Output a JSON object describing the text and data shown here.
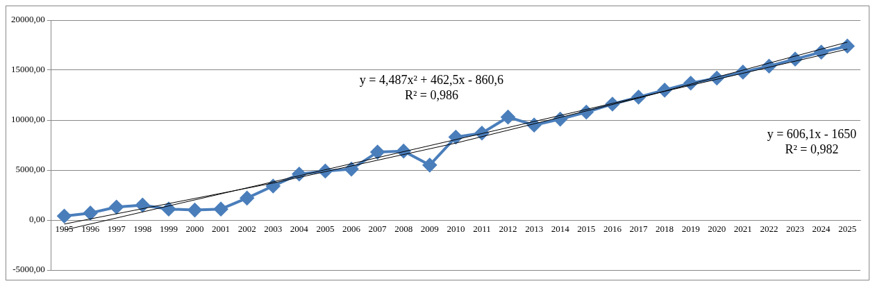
{
  "chart_data": {
    "type": "line",
    "categories": [
      "1995",
      "1996",
      "1997",
      "1998",
      "1999",
      "2000",
      "2001",
      "2002",
      "2003",
      "2004",
      "2005",
      "2006",
      "2007",
      "2008",
      "2009",
      "2010",
      "2011",
      "2012",
      "2013",
      "2014",
      "2015",
      "2016",
      "2017",
      "2018",
      "2019",
      "2020",
      "2021",
      "2022",
      "2023",
      "2024",
      "2025"
    ],
    "series": [
      {
        "color": "#4a7ebb",
        "values": [
          400,
          700,
          1300,
          1500,
          1100,
          1000,
          1100,
          2200,
          3400,
          4600,
          4900,
          5100,
          6800,
          6900,
          5500,
          8300,
          8700,
          10300,
          9500,
          10100,
          10800,
          11600,
          12300,
          13000,
          13700,
          14200,
          14800,
          15400,
          16100,
          16800,
          17400
        ],
        "marker": "diamond"
      },
      {
        "type": "line",
        "color": "#000000",
        "values": [
          -1000,
          null,
          null,
          null,
          null,
          null,
          null,
          null,
          null,
          null,
          null,
          null,
          null,
          null,
          null,
          null,
          null,
          null,
          null,
          null,
          null,
          null,
          null,
          null,
          null,
          null,
          null,
          null,
          null,
          null,
          17100
        ],
        "marker": "none"
      },
      {
        "type": "line",
        "color": "#000000",
        "values": [
          -400,
          null,
          null,
          null,
          null,
          null,
          null,
          null,
          3700,
          null,
          null,
          null,
          null,
          null,
          null,
          7700,
          null,
          null,
          null,
          null,
          null,
          null,
          12200,
          null,
          null,
          null,
          null,
          null,
          null,
          null,
          17800
        ],
        "marker": "none"
      }
    ],
    "ylim": [
      -5000,
      20000
    ],
    "yticks": [
      {
        "value": -5000,
        "label": "-5000,00"
      },
      {
        "value": 0,
        "label": "0,00"
      },
      {
        "value": 5000,
        "label": "5000,00"
      },
      {
        "value": 10000,
        "label": "10000,00"
      },
      {
        "value": 15000,
        "label": "15000,00"
      },
      {
        "value": 20000,
        "label": "20000,00"
      }
    ],
    "grid": "y",
    "legend": false,
    "annotations": [
      "y = 4,487x² + 462,5x - 860,6\nR² = 0,986",
      "y = 606,1x - 1650\nR² = 0,982"
    ]
  }
}
